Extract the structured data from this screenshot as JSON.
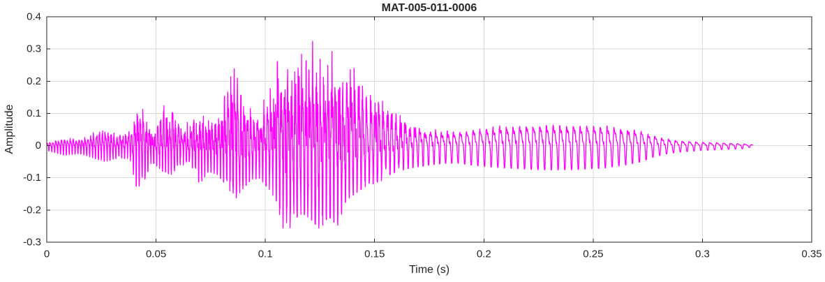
{
  "figure": {
    "background": "#ffffff"
  },
  "chart_data": {
    "type": "line",
    "title": "MAT-005-011-0006",
    "xlabel": "Time (s)",
    "ylabel": "Amplitude",
    "xlim": [
      0,
      0.35
    ],
    "ylim": [
      -0.3,
      0.4
    ],
    "x_ticks": [
      0,
      0.05,
      0.1,
      0.15,
      0.2,
      0.25,
      0.3,
      0.35
    ],
    "x_tick_labels": [
      "0",
      "0.05",
      "0.1",
      "0.15",
      "0.2",
      "0.25",
      "0.3",
      "0.35"
    ],
    "y_ticks": [
      -0.3,
      -0.2,
      -0.1,
      0,
      0.1,
      0.2,
      0.3,
      0.4
    ],
    "y_tick_labels": [
      "-0.3",
      "-0.2",
      "-0.1",
      "0",
      "0.1",
      "0.2",
      "0.3",
      "0.4"
    ],
    "grid": true,
    "legend": "none",
    "line_color": "#ff00ff",
    "axis_color": "#262626",
    "grid_color": "#dadada",
    "signal": {
      "t_end": 0.323,
      "envelope": [
        [
          0.0,
          -0.015,
          0.015
        ],
        [
          0.008,
          -0.03,
          0.03
        ],
        [
          0.015,
          -0.025,
          0.03
        ],
        [
          0.022,
          -0.04,
          0.05
        ],
        [
          0.027,
          -0.05,
          0.07
        ],
        [
          0.032,
          -0.04,
          0.04
        ],
        [
          0.038,
          -0.04,
          0.05
        ],
        [
          0.041,
          -0.13,
          0.14
        ],
        [
          0.044,
          -0.12,
          0.13
        ],
        [
          0.048,
          -0.05,
          0.06
        ],
        [
          0.053,
          -0.08,
          0.14
        ],
        [
          0.057,
          -0.09,
          0.13
        ],
        [
          0.061,
          -0.06,
          0.07
        ],
        [
          0.066,
          -0.06,
          0.08
        ],
        [
          0.07,
          -0.12,
          0.18
        ],
        [
          0.074,
          -0.08,
          0.1
        ],
        [
          0.078,
          -0.09,
          0.11
        ],
        [
          0.083,
          -0.13,
          0.22
        ],
        [
          0.086,
          -0.17,
          0.3
        ],
        [
          0.089,
          -0.14,
          0.2
        ],
        [
          0.093,
          -0.11,
          0.12
        ],
        [
          0.097,
          -0.1,
          0.13
        ],
        [
          0.101,
          -0.13,
          0.2
        ],
        [
          0.105,
          -0.17,
          0.33
        ],
        [
          0.109,
          -0.29,
          0.26
        ],
        [
          0.113,
          -0.23,
          0.28
        ],
        [
          0.117,
          -0.21,
          0.33
        ],
        [
          0.121,
          -0.23,
          0.4
        ],
        [
          0.125,
          -0.26,
          0.34
        ],
        [
          0.129,
          -0.22,
          0.33
        ],
        [
          0.133,
          -0.25,
          0.31
        ],
        [
          0.137,
          -0.17,
          0.28
        ],
        [
          0.141,
          -0.15,
          0.27
        ],
        [
          0.145,
          -0.13,
          0.24
        ],
        [
          0.149,
          -0.12,
          0.21
        ],
        [
          0.153,
          -0.11,
          0.19
        ],
        [
          0.157,
          -0.09,
          0.16
        ],
        [
          0.161,
          -0.08,
          0.13
        ],
        [
          0.166,
          -0.07,
          0.1
        ],
        [
          0.171,
          -0.065,
          0.085
        ],
        [
          0.176,
          -0.06,
          0.075
        ],
        [
          0.182,
          -0.055,
          0.07
        ],
        [
          0.188,
          -0.055,
          0.07
        ],
        [
          0.194,
          -0.06,
          0.08
        ],
        [
          0.2,
          -0.065,
          0.09
        ],
        [
          0.21,
          -0.07,
          0.1
        ],
        [
          0.225,
          -0.075,
          0.105
        ],
        [
          0.24,
          -0.075,
          0.105
        ],
        [
          0.255,
          -0.07,
          0.1
        ],
        [
          0.265,
          -0.06,
          0.09
        ],
        [
          0.272,
          -0.05,
          0.075
        ],
        [
          0.278,
          -0.035,
          0.05
        ],
        [
          0.284,
          -0.025,
          0.035
        ],
        [
          0.29,
          -0.02,
          0.025
        ],
        [
          0.3,
          -0.015,
          0.018
        ],
        [
          0.31,
          -0.012,
          0.014
        ],
        [
          0.318,
          -0.01,
          0.01
        ],
        [
          0.323,
          -0.004,
          0.004
        ]
      ],
      "freq_profile": [
        [
          0.0,
          750
        ],
        [
          0.05,
          750
        ],
        [
          0.1,
          650
        ],
        [
          0.155,
          520
        ],
        [
          0.175,
          400
        ],
        [
          0.19,
          330
        ],
        [
          0.323,
          315
        ]
      ],
      "noise_profile": [
        [
          0.0,
          0.2
        ],
        [
          0.025,
          0.35
        ],
        [
          0.04,
          0.5
        ],
        [
          0.15,
          0.5
        ],
        [
          0.17,
          0.25
        ],
        [
          0.19,
          0.08
        ],
        [
          0.323,
          0.06
        ]
      ]
    }
  }
}
